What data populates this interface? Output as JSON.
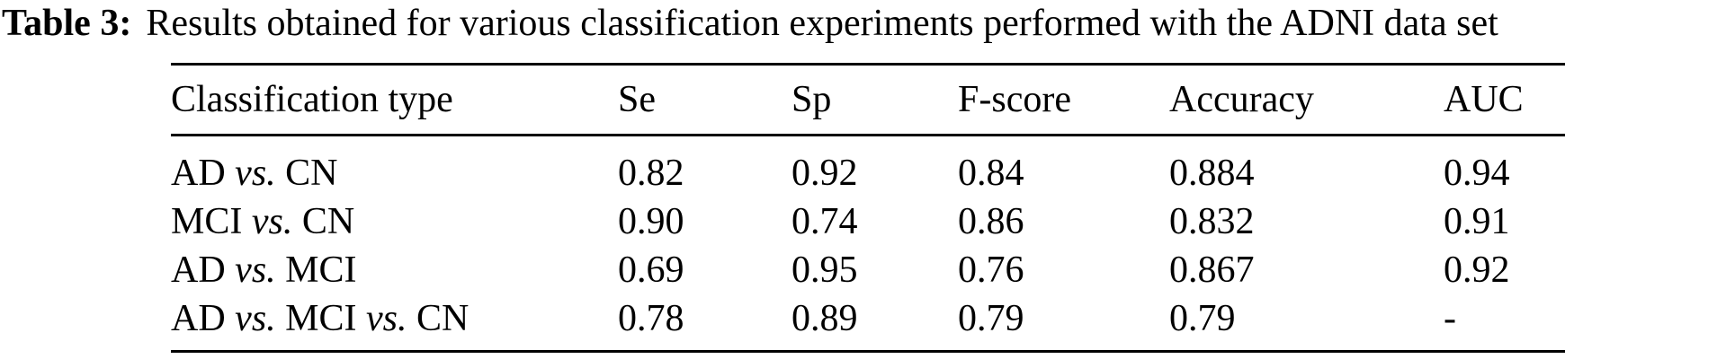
{
  "caption": {
    "label": "Table 3:",
    "text": "Results obtained for various classification experiments performed with the ADNI data set"
  },
  "table": {
    "columns": [
      "Classification type",
      "Se",
      "Sp",
      "F-score",
      "Accuracy",
      "AUC"
    ],
    "rows": [
      [
        "AD vs. CN",
        "0.82",
        "0.92",
        "0.84",
        "0.884",
        "0.94"
      ],
      [
        "MCI vs. CN",
        "0.90",
        "0.74",
        "0.86",
        "0.832",
        "0.91"
      ],
      [
        "AD vs. MCI",
        "0.69",
        "0.95",
        "0.76",
        "0.867",
        "0.92"
      ],
      [
        "AD vs. MCI vs. CN",
        "0.78",
        "0.89",
        "0.79",
        "0.79",
        "-"
      ]
    ]
  },
  "colors": {
    "text": "#000000",
    "background": "#ffffff",
    "rule": "#000000"
  }
}
